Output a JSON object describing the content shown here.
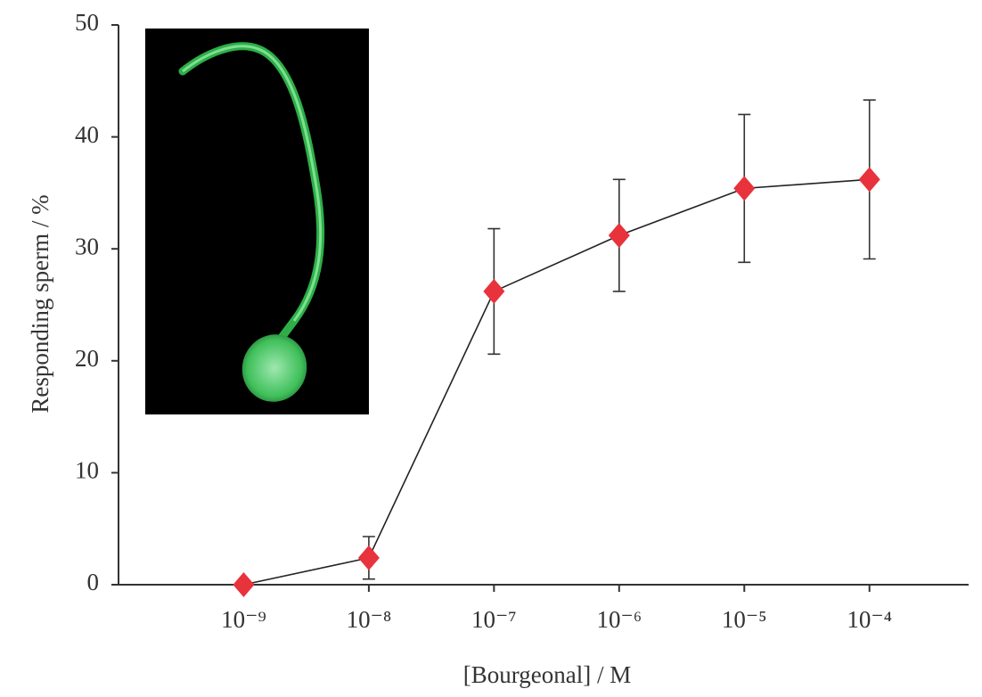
{
  "chart_data": {
    "type": "line",
    "ylabel": "Responding sperm / %",
    "xlabel": "[Bourgeonal] / M",
    "x": [
      1e-09,
      1e-08,
      1e-07,
      1e-06,
      1e-05,
      0.0001
    ],
    "series": [
      {
        "color": "#e8323c",
        "line_color": "#222222",
        "values": [
          0,
          2.4,
          26.2,
          31.2,
          35.4,
          36.2
        ],
        "errors": [
          null,
          1.9,
          5.6,
          5,
          6.6,
          7.1
        ]
      }
    ],
    "xscale": "log",
    "xlim": [
      1e-10,
      0.0006
    ],
    "xticks": [
      {
        "value": 1e-09,
        "label": "10⁻⁹"
      },
      {
        "value": 1e-08,
        "label": "10⁻⁸"
      },
      {
        "value": 1e-07,
        "label": "10⁻⁷"
      },
      {
        "value": 1e-06,
        "label": "10⁻⁶"
      },
      {
        "value": 1e-05,
        "label": "10⁻⁵"
      },
      {
        "value": 0.0001,
        "label": "10⁻⁴"
      }
    ],
    "ylim": [
      0,
      50
    ],
    "yticks": [
      0,
      10,
      20,
      30,
      40,
      50
    ],
    "grid": false
  }
}
